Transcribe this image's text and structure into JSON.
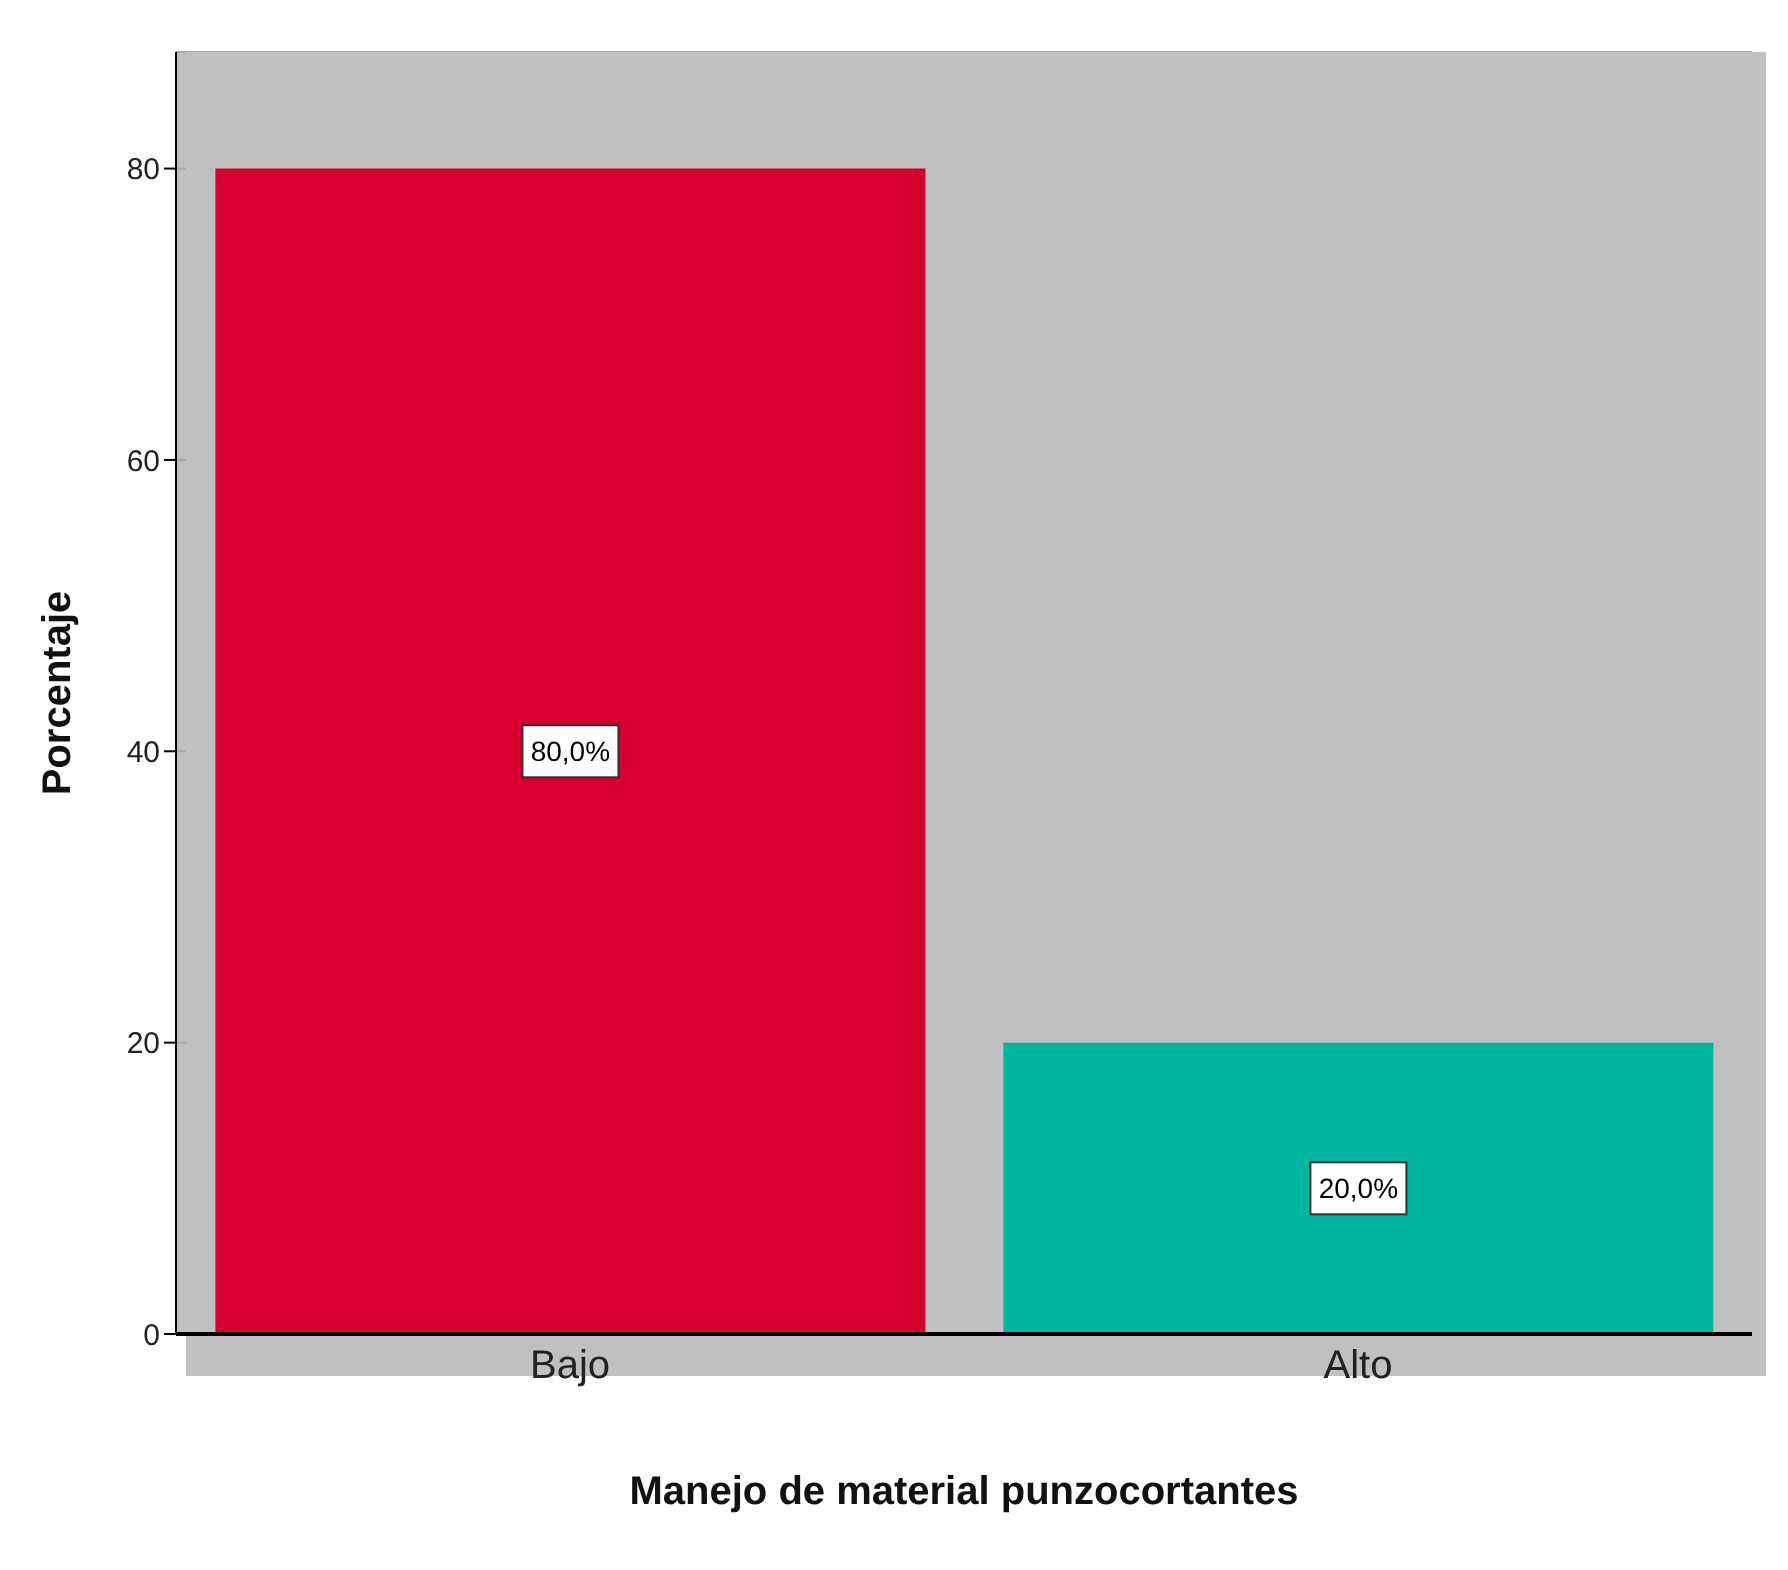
{
  "chart_data": {
    "type": "bar",
    "xlabel": "Manejo de material punzocortantes",
    "ylabel": "Porcentaje",
    "categories": [
      "Bajo",
      "Alto"
    ],
    "values": [
      80,
      20
    ],
    "colors": [
      "#d5002e",
      "#00b5a0"
    ],
    "value_labels": [
      "80,0%",
      "20,0%"
    ],
    "ylim": [
      0,
      88
    ],
    "yticks": [
      0,
      20,
      40,
      60,
      80
    ],
    "grid": "y"
  }
}
